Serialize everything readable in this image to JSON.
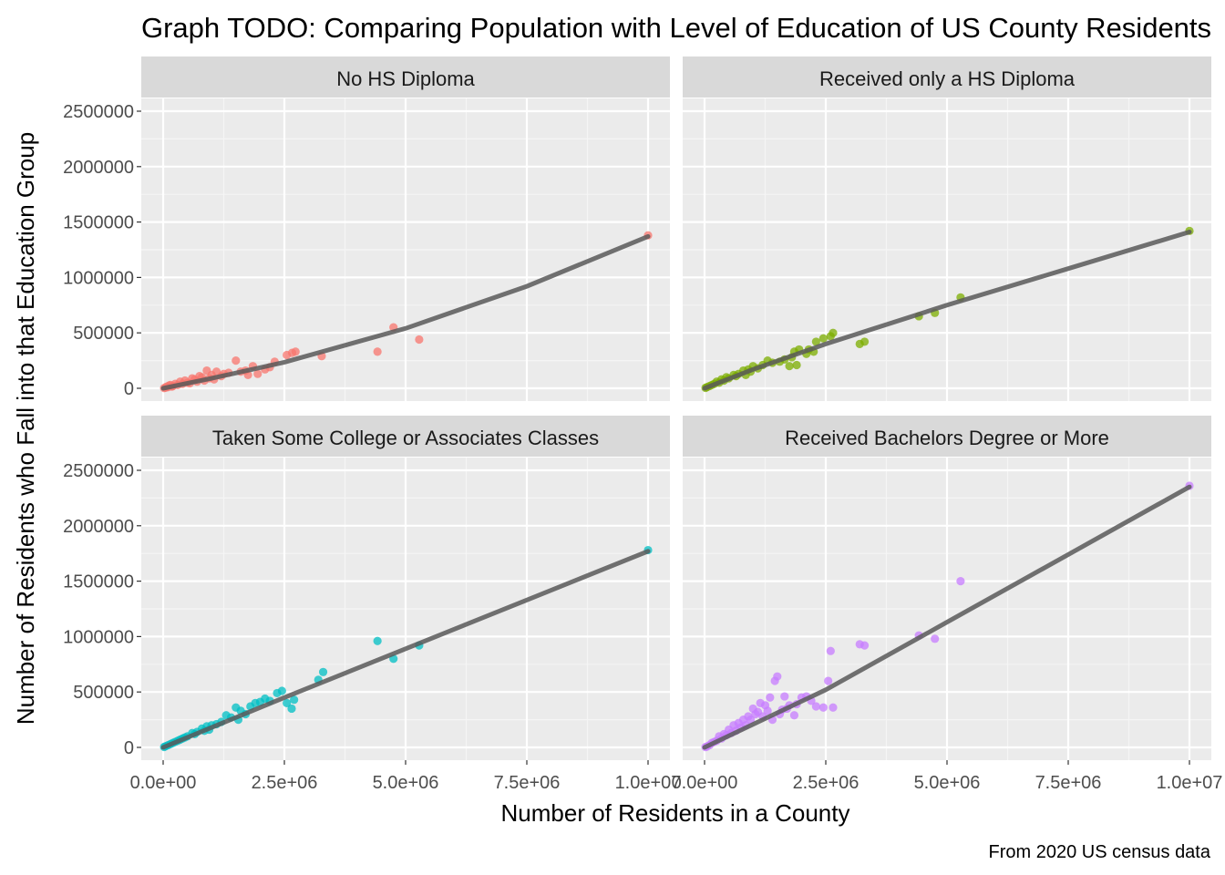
{
  "chart_data": {
    "type": "scatter",
    "title": "Graph TODO: Comparing Population with Level of Education of US County Residents",
    "xlabel": "Number of Residents in a County",
    "ylabel": "Number of Residents who Fall into that Education Group",
    "caption": "From 2020 US census data",
    "xlim": [
      0,
      10000000
    ],
    "ylim": [
      0,
      2500000
    ],
    "x_ticks": [
      0,
      2500000,
      5000000,
      7500000,
      10000000
    ],
    "x_tick_labels": [
      "0.0e+00",
      "2.5e+06",
      "5.0e+06",
      "7.5e+06",
      "1.0e+07"
    ],
    "y_ticks": [
      0,
      500000,
      1000000,
      1500000,
      2000000,
      2500000
    ],
    "y_tick_labels": [
      "0",
      "500000",
      "1000000",
      "1500000",
      "2000000",
      "2500000"
    ],
    "grid": true,
    "legend": "none",
    "trend_color": "#595959",
    "panels": [
      {
        "name": "No HS Diploma",
        "color": "#F8766D",
        "points": [
          [
            10000000,
            1380000
          ],
          [
            5280000,
            440000
          ],
          [
            4750000,
            550000
          ],
          [
            4420000,
            330000
          ],
          [
            3270000,
            290000
          ],
          [
            2730000,
            330000
          ],
          [
            2660000,
            320000
          ],
          [
            2550000,
            300000
          ],
          [
            2300000,
            240000
          ],
          [
            2200000,
            190000
          ],
          [
            2100000,
            170000
          ],
          [
            1950000,
            130000
          ],
          [
            1850000,
            200000
          ],
          [
            1700000,
            160000
          ],
          [
            1500000,
            250000
          ],
          [
            1350000,
            140000
          ],
          [
            1200000,
            110000
          ],
          [
            1100000,
            150000
          ],
          [
            1000000,
            120000
          ],
          [
            950000,
            90000
          ],
          [
            900000,
            160000
          ],
          [
            850000,
            70000
          ],
          [
            800000,
            100000
          ],
          [
            700000,
            60000
          ],
          [
            650000,
            80000
          ],
          [
            600000,
            90000
          ],
          [
            500000,
            50000
          ],
          [
            450000,
            70000
          ],
          [
            400000,
            40000
          ],
          [
            350000,
            60000
          ],
          [
            300000,
            30000
          ],
          [
            250000,
            40000
          ],
          [
            200000,
            20000
          ],
          [
            150000,
            30000
          ],
          [
            100000,
            10000
          ],
          [
            50000,
            5000
          ],
          [
            20000,
            2000
          ],
          [
            70000,
            15000
          ],
          [
            120000,
            25000
          ],
          [
            180000,
            15000
          ],
          [
            550000,
            45000
          ],
          [
            750000,
            110000
          ],
          [
            1050000,
            80000
          ],
          [
            1250000,
            130000
          ],
          [
            1600000,
            150000
          ],
          [
            1750000,
            120000
          ]
        ],
        "trend": [
          [
            0,
            0
          ],
          [
            1000000,
            90000
          ],
          [
            2500000,
            235000
          ],
          [
            5000000,
            540000
          ],
          [
            7500000,
            920000
          ],
          [
            10000000,
            1370000
          ]
        ]
      },
      {
        "name": "Received only a HS Diploma",
        "color": "#7CAE00",
        "points": [
          [
            10000000,
            1420000
          ],
          [
            5280000,
            820000
          ],
          [
            4750000,
            680000
          ],
          [
            4420000,
            650000
          ],
          [
            3300000,
            420000
          ],
          [
            3200000,
            400000
          ],
          [
            2650000,
            500000
          ],
          [
            2600000,
            470000
          ],
          [
            2450000,
            450000
          ],
          [
            2300000,
            420000
          ],
          [
            2250000,
            330000
          ],
          [
            2150000,
            350000
          ],
          [
            2100000,
            310000
          ],
          [
            1950000,
            350000
          ],
          [
            1850000,
            330000
          ],
          [
            1800000,
            280000
          ],
          [
            1750000,
            200000
          ],
          [
            1650000,
            260000
          ],
          [
            1550000,
            240000
          ],
          [
            1400000,
            230000
          ],
          [
            1300000,
            250000
          ],
          [
            1200000,
            210000
          ],
          [
            1100000,
            180000
          ],
          [
            1000000,
            200000
          ],
          [
            950000,
            150000
          ],
          [
            900000,
            170000
          ],
          [
            850000,
            120000
          ],
          [
            800000,
            160000
          ],
          [
            700000,
            130000
          ],
          [
            650000,
            110000
          ],
          [
            600000,
            120000
          ],
          [
            500000,
            90000
          ],
          [
            450000,
            100000
          ],
          [
            400000,
            70000
          ],
          [
            350000,
            80000
          ],
          [
            300000,
            50000
          ],
          [
            250000,
            60000
          ],
          [
            200000,
            40000
          ],
          [
            150000,
            30000
          ],
          [
            100000,
            20000
          ],
          [
            50000,
            10000
          ],
          [
            20000,
            4000
          ],
          [
            1900000,
            210000
          ]
        ],
        "trend": [
          [
            0,
            0
          ],
          [
            1000000,
            170000
          ],
          [
            2500000,
            400000
          ],
          [
            5000000,
            750000
          ],
          [
            7500000,
            1080000
          ],
          [
            10000000,
            1410000
          ]
        ]
      },
      {
        "name": "Taken Some College or Associates Classes",
        "color": "#00BFC4",
        "points": [
          [
            10000000,
            1780000
          ],
          [
            5280000,
            920000
          ],
          [
            4750000,
            800000
          ],
          [
            4420000,
            960000
          ],
          [
            3300000,
            680000
          ],
          [
            3200000,
            610000
          ],
          [
            2700000,
            430000
          ],
          [
            2650000,
            350000
          ],
          [
            2550000,
            400000
          ],
          [
            2450000,
            510000
          ],
          [
            2350000,
            490000
          ],
          [
            2200000,
            420000
          ],
          [
            2100000,
            440000
          ],
          [
            2000000,
            410000
          ],
          [
            1900000,
            400000
          ],
          [
            1800000,
            370000
          ],
          [
            1700000,
            300000
          ],
          [
            1600000,
            330000
          ],
          [
            1550000,
            250000
          ],
          [
            1500000,
            360000
          ],
          [
            1400000,
            270000
          ],
          [
            1300000,
            290000
          ],
          [
            1200000,
            230000
          ],
          [
            1100000,
            210000
          ],
          [
            1000000,
            200000
          ],
          [
            950000,
            160000
          ],
          [
            900000,
            190000
          ],
          [
            850000,
            150000
          ],
          [
            800000,
            170000
          ],
          [
            700000,
            140000
          ],
          [
            650000,
            120000
          ],
          [
            600000,
            130000
          ],
          [
            500000,
            100000
          ],
          [
            450000,
            90000
          ],
          [
            400000,
            80000
          ],
          [
            350000,
            70000
          ],
          [
            300000,
            60000
          ],
          [
            250000,
            50000
          ],
          [
            200000,
            40000
          ],
          [
            150000,
            30000
          ],
          [
            100000,
            20000
          ],
          [
            50000,
            10000
          ],
          [
            20000,
            4000
          ]
        ],
        "trend": [
          [
            0,
            0
          ],
          [
            2500000,
            450000
          ],
          [
            5000000,
            890000
          ],
          [
            7500000,
            1330000
          ],
          [
            10000000,
            1770000
          ]
        ]
      },
      {
        "name": "Received Bachelors Degree or More",
        "color": "#C77CFF",
        "points": [
          [
            10000000,
            2360000
          ],
          [
            5280000,
            1500000
          ],
          [
            4750000,
            980000
          ],
          [
            4420000,
            1010000
          ],
          [
            3300000,
            920000
          ],
          [
            3200000,
            930000
          ],
          [
            2600000,
            870000
          ],
          [
            2550000,
            600000
          ],
          [
            2450000,
            360000
          ],
          [
            2300000,
            370000
          ],
          [
            2200000,
            420000
          ],
          [
            2100000,
            460000
          ],
          [
            2000000,
            450000
          ],
          [
            1900000,
            390000
          ],
          [
            1850000,
            290000
          ],
          [
            1750000,
            380000
          ],
          [
            1650000,
            460000
          ],
          [
            1550000,
            300000
          ],
          [
            1500000,
            640000
          ],
          [
            1450000,
            600000
          ],
          [
            1350000,
            450000
          ],
          [
            1300000,
            330000
          ],
          [
            1250000,
            380000
          ],
          [
            1200000,
            280000
          ],
          [
            1150000,
            400000
          ],
          [
            1100000,
            320000
          ],
          [
            1050000,
            300000
          ],
          [
            1000000,
            350000
          ],
          [
            950000,
            250000
          ],
          [
            900000,
            280000
          ],
          [
            850000,
            200000
          ],
          [
            800000,
            250000
          ],
          [
            750000,
            180000
          ],
          [
            700000,
            220000
          ],
          [
            650000,
            150000
          ],
          [
            600000,
            200000
          ],
          [
            550000,
            130000
          ],
          [
            500000,
            160000
          ],
          [
            450000,
            110000
          ],
          [
            400000,
            120000
          ],
          [
            350000,
            80000
          ],
          [
            300000,
            100000
          ],
          [
            250000,
            60000
          ],
          [
            200000,
            50000
          ],
          [
            150000,
            40000
          ],
          [
            100000,
            20000
          ],
          [
            50000,
            8000
          ],
          [
            20000,
            3000
          ],
          [
            1400000,
            250000
          ],
          [
            1600000,
            340000
          ],
          [
            1700000,
            350000
          ],
          [
            2650000,
            360000
          ]
        ],
        "trend": [
          [
            0,
            0
          ],
          [
            2500000,
            520000
          ],
          [
            5000000,
            1130000
          ],
          [
            7500000,
            1740000
          ],
          [
            10000000,
            2350000
          ]
        ]
      }
    ]
  }
}
